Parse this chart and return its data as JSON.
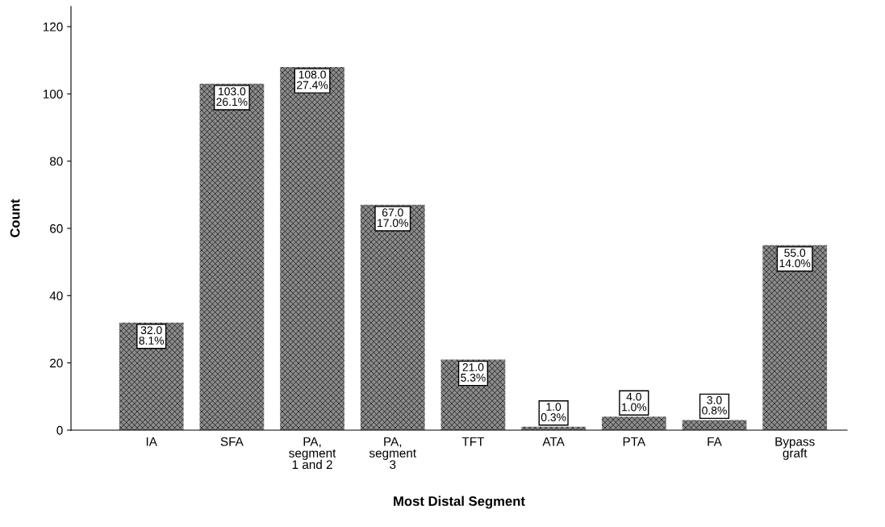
{
  "chart_data": {
    "type": "bar",
    "xlabel": "Most Distal Segment",
    "ylabel": "Count",
    "categories": [
      "IA",
      "SFA",
      "PA,\nsegment\n1 and 2",
      "PA,\nsegment\n3",
      "TFT",
      "ATA",
      "PTA",
      "FA",
      "Bypass\ngraft"
    ],
    "values": [
      32,
      103,
      108,
      67,
      21,
      1,
      4,
      3,
      55
    ],
    "value_labels": [
      "32.0\n8.1%",
      "103.0\n26.1%",
      "108.0\n27.4%",
      "67.0\n17.0%",
      "21.0\n5.3%",
      "1.0\n0.3%",
      "4.0\n1.0%",
      "3.0\n0.8%",
      "55.0\n14.0%"
    ],
    "color": "#8c8c8c",
    "ylim": [
      0,
      126
    ],
    "yticks": [
      0,
      20,
      40,
      60,
      80,
      100,
      120
    ],
    "grid": false,
    "legend": false
  }
}
